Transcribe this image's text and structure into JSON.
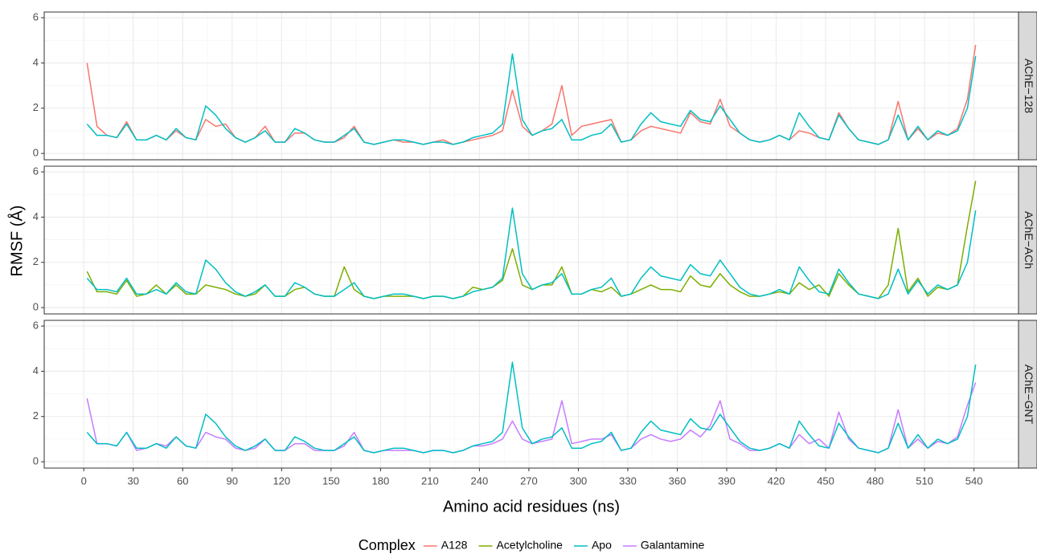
{
  "chart_data": {
    "type": "line",
    "xlabel": "Amino acid residues (ns)",
    "ylabel": "RMSF (Å)",
    "legend_title": "Complex",
    "legend": "bottom",
    "grid": true,
    "xlim": [
      -24,
      567
    ],
    "xticks": [
      0,
      30,
      60,
      90,
      120,
      150,
      180,
      210,
      240,
      270,
      300,
      330,
      360,
      390,
      420,
      450,
      480,
      510,
      540
    ],
    "ylim": [
      -0.28,
      6.25
    ],
    "yticks": [
      0,
      2,
      4,
      6
    ],
    "facets": [
      {
        "label": "AChE−128",
        "series": [
          "A128",
          "Apo"
        ]
      },
      {
        "label": "AChE−ACh",
        "series": [
          "Acetylcholine",
          "Apo"
        ]
      },
      {
        "label": "AChE−GNT",
        "series": [
          "Galantamine",
          "Apo"
        ]
      }
    ],
    "x": [
      2,
      8,
      14,
      20,
      26,
      32,
      38,
      44,
      50,
      56,
      62,
      68,
      74,
      80,
      86,
      92,
      98,
      104,
      110,
      116,
      122,
      128,
      134,
      140,
      146,
      152,
      158,
      164,
      170,
      176,
      182,
      188,
      194,
      200,
      206,
      212,
      218,
      224,
      230,
      236,
      242,
      248,
      254,
      260,
      266,
      272,
      278,
      284,
      290,
      296,
      302,
      308,
      314,
      320,
      326,
      332,
      338,
      344,
      350,
      356,
      362,
      368,
      374,
      380,
      386,
      392,
      398,
      404,
      410,
      416,
      422,
      428,
      434,
      440,
      446,
      452,
      458,
      464,
      470,
      476,
      482,
      488,
      494,
      500,
      506,
      512,
      518,
      524,
      530,
      536,
      541
    ],
    "series": [
      {
        "name": "A128",
        "color": "#F8766D",
        "values": [
          4.0,
          1.2,
          0.8,
          0.7,
          1.4,
          0.6,
          0.6,
          0.8,
          0.6,
          1.0,
          0.7,
          0.6,
          1.5,
          1.2,
          1.3,
          0.7,
          0.5,
          0.7,
          1.2,
          0.5,
          0.5,
          0.9,
          0.9,
          0.6,
          0.5,
          0.5,
          0.7,
          1.2,
          0.5,
          0.4,
          0.5,
          0.6,
          0.5,
          0.5,
          0.4,
          0.5,
          0.6,
          0.4,
          0.5,
          0.6,
          0.7,
          0.8,
          1.0,
          2.8,
          1.2,
          0.8,
          1.0,
          1.3,
          3.0,
          0.8,
          1.2,
          1.3,
          1.4,
          1.5,
          0.5,
          0.6,
          1.0,
          1.2,
          1.1,
          1.0,
          0.9,
          1.8,
          1.4,
          1.3,
          2.4,
          1.2,
          0.9,
          0.6,
          0.5,
          0.6,
          0.8,
          0.6,
          1.0,
          0.9,
          0.7,
          0.6,
          1.8,
          1.1,
          0.6,
          0.5,
          0.4,
          0.6,
          2.3,
          0.6,
          1.1,
          0.6,
          0.9,
          0.8,
          1.1,
          2.4,
          4.8
        ]
      },
      {
        "name": "Acetylcholine",
        "color": "#7CAE00",
        "values": [
          1.6,
          0.7,
          0.7,
          0.6,
          1.2,
          0.5,
          0.6,
          1.0,
          0.6,
          1.0,
          0.6,
          0.6,
          1.0,
          0.9,
          0.8,
          0.6,
          0.5,
          0.6,
          1.0,
          0.5,
          0.5,
          0.8,
          0.9,
          0.6,
          0.5,
          0.5,
          1.8,
          0.8,
          0.5,
          0.4,
          0.5,
          0.5,
          0.5,
          0.5,
          0.4,
          0.5,
          0.5,
          0.4,
          0.5,
          0.9,
          0.8,
          0.9,
          1.2,
          2.6,
          1.0,
          0.8,
          1.0,
          1.0,
          1.8,
          0.6,
          0.6,
          0.8,
          0.7,
          0.9,
          0.5,
          0.6,
          0.8,
          1.0,
          0.8,
          0.8,
          0.7,
          1.4,
          1.0,
          0.9,
          1.5,
          1.0,
          0.7,
          0.5,
          0.5,
          0.6,
          0.7,
          0.6,
          1.1,
          0.8,
          1.0,
          0.5,
          1.5,
          1.0,
          0.6,
          0.5,
          0.4,
          1.0,
          3.5,
          0.7,
          1.3,
          0.5,
          0.9,
          0.8,
          1.0,
          3.6,
          5.6
        ]
      },
      {
        "name": "Apo",
        "color": "#00BFC4",
        "values": [
          1.3,
          0.8,
          0.8,
          0.7,
          1.3,
          0.6,
          0.6,
          0.8,
          0.6,
          1.1,
          0.7,
          0.6,
          2.1,
          1.7,
          1.1,
          0.7,
          0.5,
          0.7,
          1.0,
          0.5,
          0.5,
          1.1,
          0.9,
          0.6,
          0.5,
          0.5,
          0.8,
          1.1,
          0.5,
          0.4,
          0.5,
          0.6,
          0.6,
          0.5,
          0.4,
          0.5,
          0.5,
          0.4,
          0.5,
          0.7,
          0.8,
          0.9,
          1.3,
          4.4,
          1.5,
          0.8,
          1.0,
          1.1,
          1.5,
          0.6,
          0.6,
          0.8,
          0.9,
          1.3,
          0.5,
          0.6,
          1.3,
          1.8,
          1.4,
          1.3,
          1.2,
          1.9,
          1.5,
          1.4,
          2.1,
          1.5,
          0.9,
          0.6,
          0.5,
          0.6,
          0.8,
          0.6,
          1.8,
          1.2,
          0.7,
          0.6,
          1.7,
          1.1,
          0.6,
          0.5,
          0.4,
          0.6,
          1.7,
          0.6,
          1.2,
          0.6,
          1.0,
          0.8,
          1.0,
          2.0,
          4.3
        ]
      },
      {
        "name": "Galantamine",
        "color": "#C77CFF",
        "values": [
          2.8,
          0.8,
          0.8,
          0.7,
          1.3,
          0.5,
          0.6,
          0.8,
          0.7,
          1.1,
          0.7,
          0.6,
          1.3,
          1.1,
          1.0,
          0.6,
          0.5,
          0.6,
          1.0,
          0.5,
          0.5,
          0.8,
          0.8,
          0.5,
          0.5,
          0.5,
          0.7,
          1.3,
          0.5,
          0.4,
          0.5,
          0.5,
          0.5,
          0.5,
          0.4,
          0.5,
          0.5,
          0.4,
          0.5,
          0.7,
          0.7,
          0.8,
          1.0,
          1.8,
          1.0,
          0.8,
          0.9,
          1.0,
          2.7,
          0.8,
          0.9,
          1.0,
          1.0,
          1.2,
          0.5,
          0.6,
          1.0,
          1.2,
          1.0,
          0.9,
          1.0,
          1.4,
          1.1,
          1.6,
          2.7,
          1.0,
          0.8,
          0.5,
          0.5,
          0.6,
          0.8,
          0.6,
          1.2,
          0.8,
          1.0,
          0.6,
          2.2,
          1.0,
          0.6,
          0.5,
          0.4,
          0.6,
          2.3,
          0.6,
          1.0,
          0.6,
          0.9,
          0.8,
          1.1,
          2.5,
          3.5
        ]
      }
    ]
  }
}
